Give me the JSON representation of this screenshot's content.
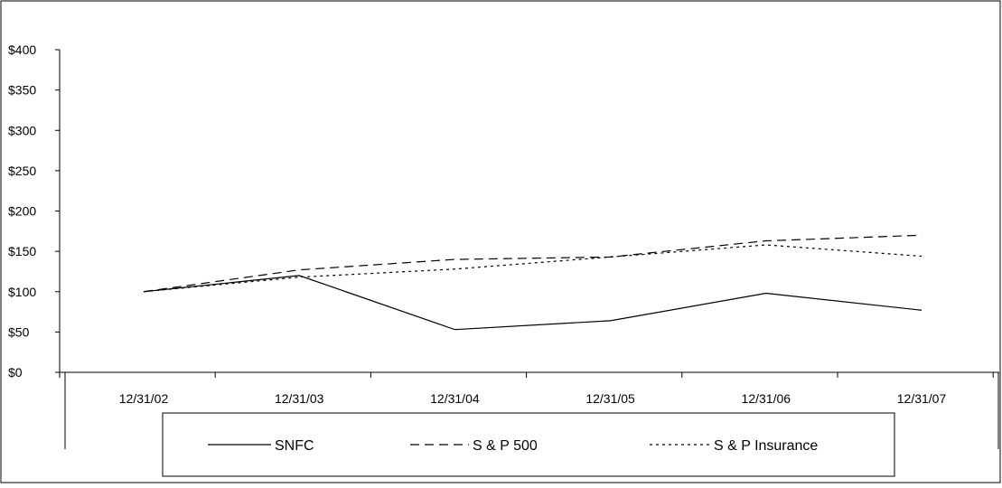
{
  "chart_data": {
    "type": "line",
    "categories": [
      "12/31/02",
      "12/31/03",
      "12/31/04",
      "12/31/05",
      "12/31/06",
      "12/31/07"
    ],
    "series": [
      {
        "name": "SNFC",
        "values": [
          100,
          120,
          53,
          64,
          98,
          77
        ],
        "style": "solid"
      },
      {
        "name": "S & P 500",
        "values": [
          100,
          127,
          140,
          143,
          163,
          170
        ],
        "style": "dashed"
      },
      {
        "name": "S & P Insurance",
        "values": [
          100,
          118,
          128,
          143,
          158,
          144
        ],
        "style": "dotted"
      }
    ],
    "y_ticks": [
      "$400",
      "$350",
      "$300",
      "$250",
      "$200",
      "$150",
      "$100",
      "$50",
      "$0"
    ],
    "ylim": [
      0,
      400
    ],
    "legend_position": "bottom",
    "line_color": "#000000",
    "grid": false
  }
}
